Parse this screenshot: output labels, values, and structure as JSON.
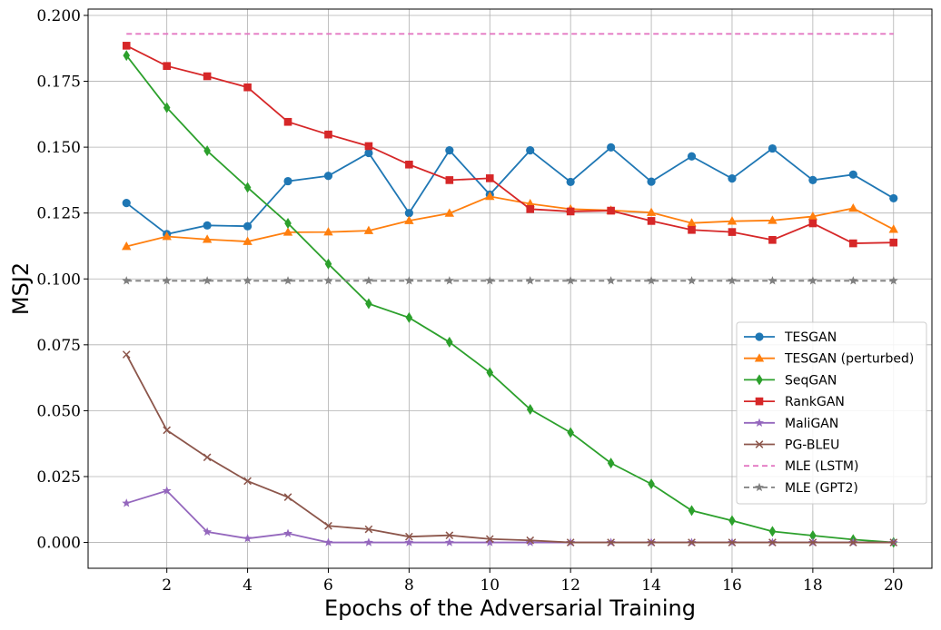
{
  "chart_data": {
    "type": "line",
    "title": "",
    "xlabel": "Epochs of the Adversarial Training",
    "ylabel": "MSJ2",
    "xlim": [
      0.05,
      20.95
    ],
    "ylim": [
      -0.0098,
      0.2024
    ],
    "xticks": [
      2,
      4,
      6,
      8,
      10,
      12,
      14,
      16,
      18,
      20
    ],
    "yticks": [
      0.0,
      0.025,
      0.05,
      0.075,
      0.1,
      0.125,
      0.15,
      0.175,
      0.2
    ],
    "ytick_labels": [
      "0.000",
      "0.025",
      "0.050",
      "0.075",
      "0.100",
      "0.125",
      "0.150",
      "0.175",
      "0.200"
    ],
    "grid": true,
    "legend_position": "center-right",
    "x": [
      1,
      2,
      3,
      4,
      5,
      6,
      7,
      8,
      9,
      10,
      11,
      12,
      13,
      14,
      15,
      16,
      17,
      18,
      19,
      20
    ],
    "series": [
      {
        "name": "TESGAN",
        "color": "#1f77b4",
        "marker": "circle",
        "dashed": false,
        "values": [
          0.1288,
          0.117,
          0.1203,
          0.12,
          0.1371,
          0.1391,
          0.1478,
          0.125,
          0.1488,
          0.132,
          0.1488,
          0.1368,
          0.1499,
          0.1369,
          0.1465,
          0.1381,
          0.1495,
          0.1375,
          0.1396,
          0.1306
        ]
      },
      {
        "name": "TESGAN (perturbed)",
        "color": "#ff7f0e",
        "marker": "triangle",
        "dashed": false,
        "values": [
          0.1123,
          0.1161,
          0.115,
          0.1142,
          0.1177,
          0.1178,
          0.1183,
          0.1221,
          0.1249,
          0.1313,
          0.1285,
          0.1265,
          0.126,
          0.1252,
          0.1212,
          0.1219,
          0.1222,
          0.1237,
          0.1268,
          0.1188
        ]
      },
      {
        "name": "SeqGAN",
        "color": "#2ca02c",
        "marker": "diamond",
        "dashed": false,
        "values": [
          0.1848,
          0.165,
          0.1486,
          0.1347,
          0.1211,
          0.1057,
          0.0906,
          0.0853,
          0.076,
          0.0645,
          0.0505,
          0.0417,
          0.0301,
          0.0222,
          0.0121,
          0.0083,
          0.0042,
          0.0026,
          0.0011,
          0.0
        ]
      },
      {
        "name": "RankGAN",
        "color": "#d62728",
        "marker": "square",
        "dashed": false,
        "values": [
          0.1885,
          0.1808,
          0.1769,
          0.1727,
          0.1596,
          0.1548,
          0.1504,
          0.1434,
          0.1375,
          0.1382,
          0.1265,
          0.1256,
          0.1259,
          0.122,
          0.1186,
          0.1178,
          0.1148,
          0.1211,
          0.1135,
          0.1138
        ]
      },
      {
        "name": "MaliGAN",
        "color": "#9467bd",
        "marker": "star",
        "dashed": false,
        "values": [
          0.0149,
          0.0196,
          0.004,
          0.0015,
          0.0034,
          0.0,
          0.0,
          0.0,
          0.0,
          0.0,
          0.0,
          0.0,
          0.0,
          0.0,
          0.0,
          0.0,
          0.0,
          0.0,
          0.0,
          0.0
        ]
      },
      {
        "name": "PG-BLEU",
        "color": "#8c564b",
        "marker": "x",
        "dashed": false,
        "values": [
          0.0713,
          0.0426,
          0.0323,
          0.0233,
          0.0172,
          0.0063,
          0.005,
          0.0022,
          0.0027,
          0.0013,
          0.0008,
          0.0,
          0.0,
          0.0,
          0.0,
          0.0,
          0.0,
          0.0,
          0.0,
          0.0
        ]
      },
      {
        "name": "MLE (LSTM)",
        "color": "#e377c2",
        "marker": "none",
        "dashed": true,
        "values": [
          0.193,
          0.193,
          0.193,
          0.193,
          0.193,
          0.193,
          0.193,
          0.193,
          0.193,
          0.193,
          0.193,
          0.193,
          0.193,
          0.193,
          0.193,
          0.193,
          0.193,
          0.193,
          0.193,
          0.193
        ]
      },
      {
        "name": "MLE (GPT2)",
        "color": "#7f7f7f",
        "marker": "star",
        "dashed": true,
        "values": [
          0.0993,
          0.0993,
          0.0993,
          0.0993,
          0.0993,
          0.0993,
          0.0993,
          0.0993,
          0.0993,
          0.0993,
          0.0993,
          0.0993,
          0.0993,
          0.0993,
          0.0993,
          0.0993,
          0.0993,
          0.0993,
          0.0993,
          0.0993
        ]
      }
    ]
  }
}
